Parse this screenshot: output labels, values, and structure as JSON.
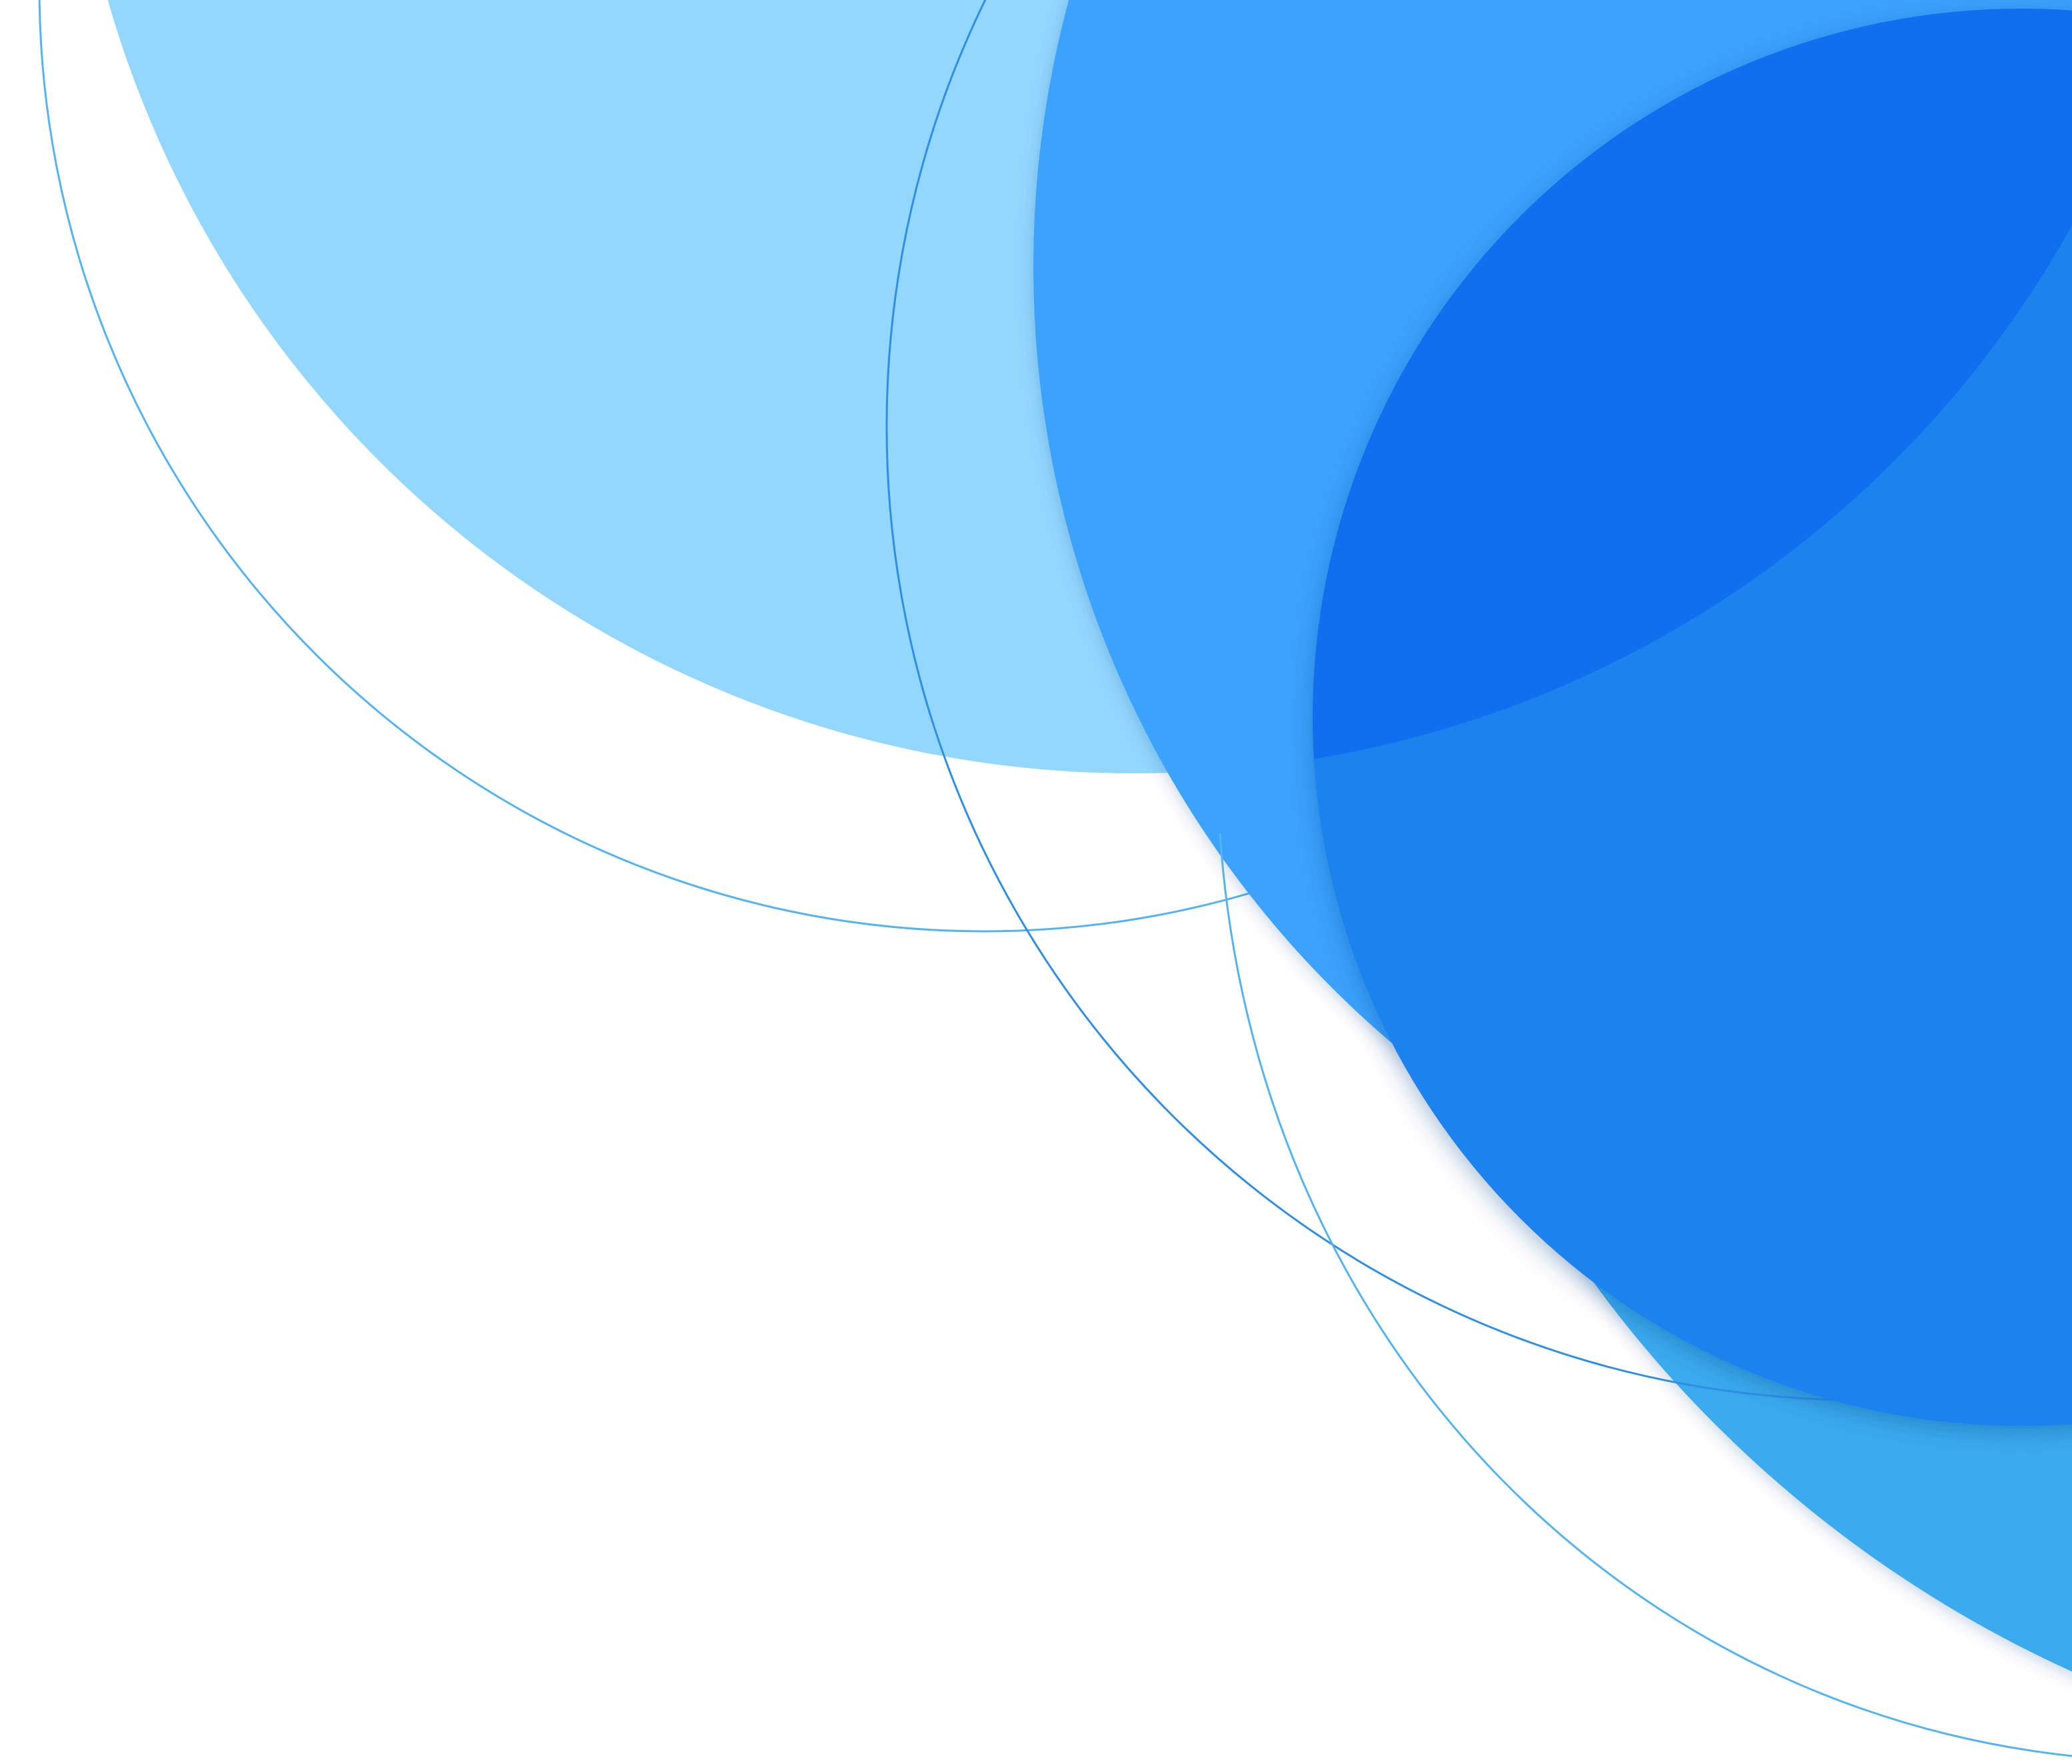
{
  "artwork": {
    "palette": {
      "background": "#ffffff",
      "light_sky": "#93D7FE",
      "sky": "#63BCFD",
      "azure": "#3AA2FD",
      "cerulean": "#3AABEE",
      "royal": "#1A83EE",
      "cobalt": "#0F6FEE",
      "outline_light": "#55B3F2",
      "outline_mid": "#2F8FE6"
    },
    "shapes": [
      "light-sky-circle",
      "cerulean-circle",
      "sky-circle",
      "azure-circle",
      "royal-circle",
      "cobalt-lens",
      "outline-ring-left",
      "outline-ring-middle",
      "outline-ring-lower"
    ]
  }
}
